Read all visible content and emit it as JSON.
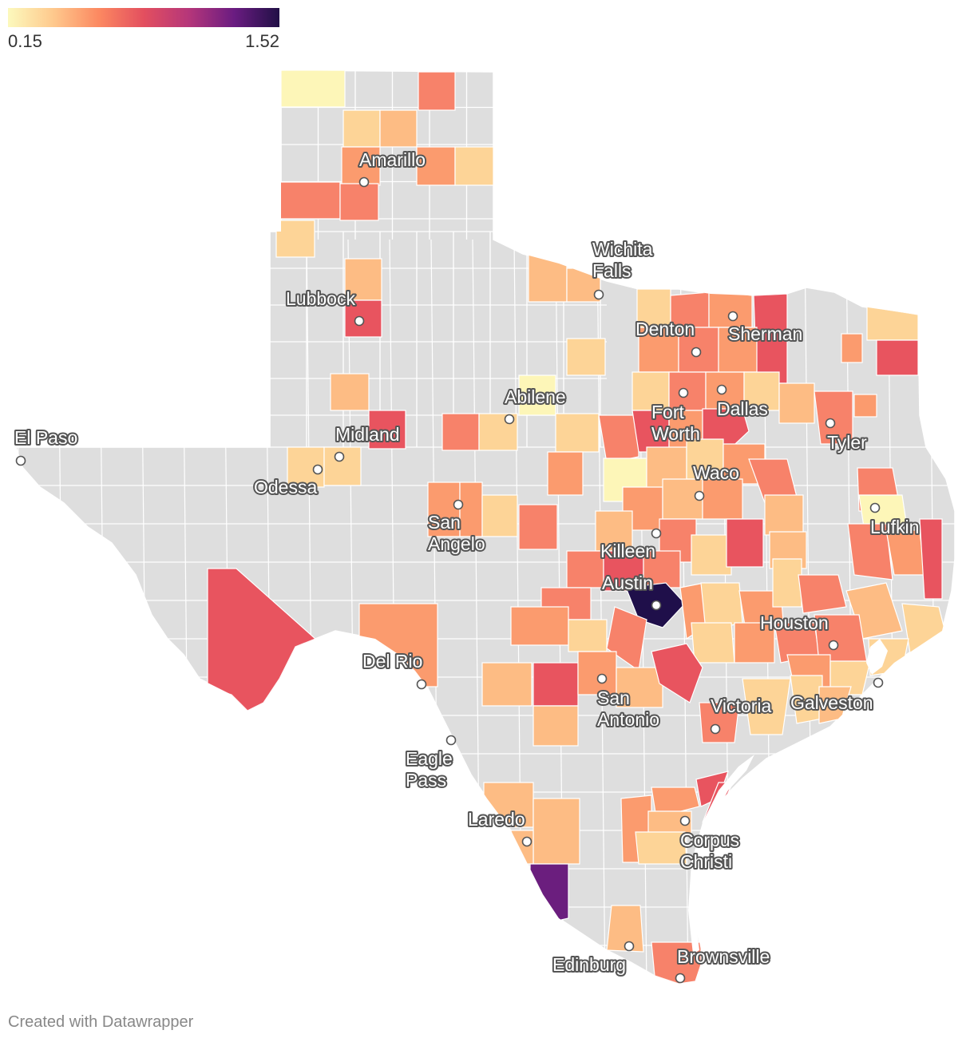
{
  "legend": {
    "min_label": "0.15",
    "max_label": "1.52",
    "gradient_colors": [
      "#fcf9bd",
      "#fec98d",
      "#fc8961",
      "#e34f5f",
      "#b5367a",
      "#6a1c81",
      "#211046"
    ]
  },
  "colors": {
    "no_data": "#dedede",
    "border": "#ffffff",
    "water": "#ffffff"
  },
  "cities": [
    {
      "name": "Amarillo",
      "lines": [
        "Amarillo"
      ]
    },
    {
      "name": "Lubbock",
      "lines": [
        "Lubbock"
      ]
    },
    {
      "name": "Wichita Falls",
      "lines": [
        "Wichita",
        "Falls"
      ]
    },
    {
      "name": "Denton",
      "lines": [
        "Denton"
      ]
    },
    {
      "name": "Sherman",
      "lines": [
        "Sherman"
      ]
    },
    {
      "name": "Abilene",
      "lines": [
        "Abilene"
      ]
    },
    {
      "name": "Fort Worth",
      "lines": [
        "Fort",
        "Worth"
      ]
    },
    {
      "name": "Dallas",
      "lines": [
        "Dallas"
      ]
    },
    {
      "name": "Tyler",
      "lines": [
        "Tyler"
      ]
    },
    {
      "name": "El Paso",
      "lines": [
        "El Paso"
      ]
    },
    {
      "name": "Midland",
      "lines": [
        "Midland"
      ]
    },
    {
      "name": "Odessa",
      "lines": [
        "Odessa"
      ]
    },
    {
      "name": "Waco",
      "lines": [
        "Waco"
      ]
    },
    {
      "name": "San Angelo",
      "lines": [
        "San",
        "Angelo"
      ]
    },
    {
      "name": "Lufkin",
      "lines": [
        "Lufkin"
      ]
    },
    {
      "name": "Killeen",
      "lines": [
        "Killeen"
      ]
    },
    {
      "name": "Austin",
      "lines": [
        "Austin"
      ]
    },
    {
      "name": "Houston",
      "lines": [
        "Houston"
      ]
    },
    {
      "name": "Del Rio",
      "lines": [
        "Del Rio"
      ]
    },
    {
      "name": "San Antonio",
      "lines": [
        "San",
        "Antonio"
      ]
    },
    {
      "name": "Victoria",
      "lines": [
        "Victoria"
      ]
    },
    {
      "name": "Galveston",
      "lines": [
        "Galveston"
      ]
    },
    {
      "name": "Eagle Pass",
      "lines": [
        "Eagle",
        "Pass"
      ]
    },
    {
      "name": "Laredo",
      "lines": [
        "Laredo"
      ]
    },
    {
      "name": "Corpus Christi",
      "lines": [
        "Corpus",
        "Christi"
      ]
    },
    {
      "name": "Edinburg",
      "lines": [
        "Edinburg"
      ]
    },
    {
      "name": "Brownsville",
      "lines": [
        "Brownsville"
      ]
    }
  ],
  "credit": "Created with Datawrapper"
}
